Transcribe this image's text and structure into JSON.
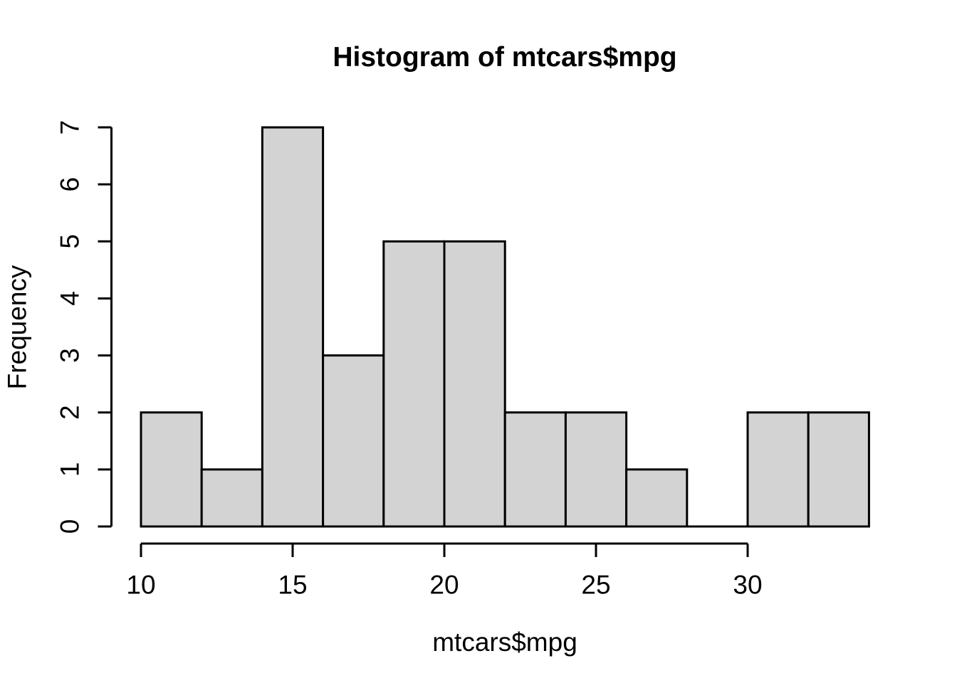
{
  "chart_data": {
    "type": "bar",
    "subtype": "histogram",
    "title": "Histogram of mtcars$mpg",
    "xlabel": "mtcars$mpg",
    "ylabel": "Frequency",
    "bin_width": 2,
    "bin_edges": [
      10,
      12,
      14,
      16,
      18,
      20,
      22,
      24,
      26,
      28,
      30,
      32,
      34
    ],
    "counts": [
      2,
      1,
      7,
      3,
      5,
      5,
      2,
      2,
      1,
      0,
      2,
      2
    ],
    "x_ticks": [
      10,
      15,
      20,
      25,
      30
    ],
    "y_ticks": [
      0,
      1,
      2,
      3,
      4,
      5,
      6,
      7
    ],
    "xlim": [
      10,
      34
    ],
    "ylim": [
      0,
      7
    ],
    "grid": false,
    "legend": null,
    "colors": {
      "bar_fill": "#d3d3d3",
      "bar_stroke": "#000000",
      "axis": "#000000",
      "text": "#000000",
      "background": "#ffffff"
    }
  }
}
